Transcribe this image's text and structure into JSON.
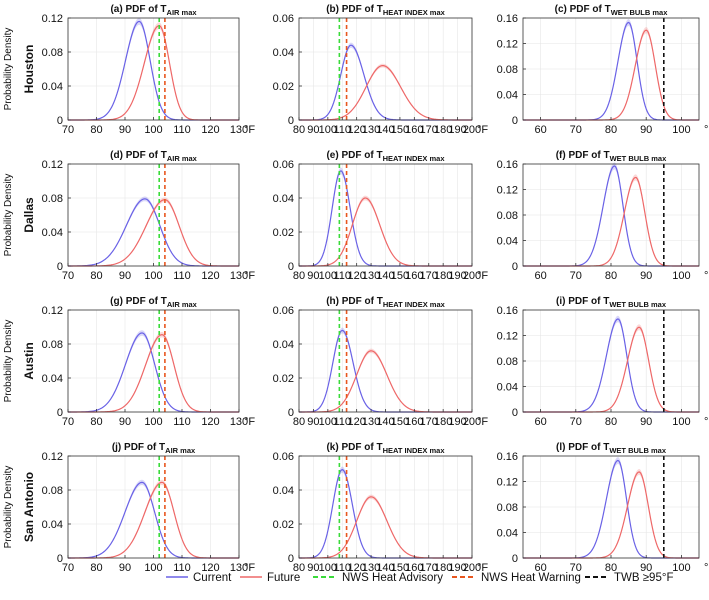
{
  "figure": {
    "y_axis_label": "Probability Density",
    "x_unit": "°F",
    "cities": [
      "Houston",
      "Dallas",
      "Austin",
      "San Antonio"
    ],
    "column_titles": [
      {
        "prefix": "PDF of T",
        "subscript": "AIR max"
      },
      {
        "prefix": "PDF of T",
        "subscript": "HEAT INDEX max"
      },
      {
        "prefix": "PDF of T",
        "subscript": "WET BULB max"
      }
    ],
    "panel_letters": [
      "a",
      "b",
      "c",
      "d",
      "e",
      "f",
      "g",
      "h",
      "i",
      "j",
      "k",
      "l"
    ],
    "colors": {
      "current": "#6a62e6",
      "future": "#ee6868",
      "advisory": "#3adb3a",
      "warning": "#e8561e",
      "twb": "#111111"
    }
  },
  "legend": {
    "current": "Current",
    "future": "Future",
    "advisory": "NWS Heat Advisory",
    "warning": "NWS Heat Warning",
    "twb": "TWB ≥95°F"
  },
  "chart_data": [
    {
      "type": "line",
      "panel": "a",
      "city": "Houston",
      "variable": "T_AIR max",
      "xlim": [
        70,
        130
      ],
      "xticks": [
        70,
        80,
        90,
        100,
        110,
        120,
        130
      ],
      "ylim": [
        0,
        0.12
      ],
      "yticks": [
        0,
        0.04,
        0.08,
        0.12
      ],
      "ytick_labels": [
        "0",
        "0.04",
        "0.08",
        "0.12"
      ],
      "series": [
        {
          "name": "Current",
          "peak_x": 95,
          "peak_y": 0.116,
          "sd_left": 4.8,
          "sd_right": 3.8
        },
        {
          "name": "Future",
          "peak_x": 102,
          "peak_y": 0.111,
          "sd_left": 5.2,
          "sd_right": 3.6
        }
      ],
      "thresholds": [
        {
          "name": "NWS Heat Advisory",
          "x": 102
        },
        {
          "name": "NWS Heat Warning",
          "x": 104
        }
      ]
    },
    {
      "type": "line",
      "panel": "b",
      "city": "Houston",
      "variable": "T_HEAT INDEX max",
      "xlim": [
        80,
        200
      ],
      "xticks": [
        80,
        90,
        100,
        110,
        120,
        130,
        140,
        150,
        160,
        170,
        180,
        190,
        200
      ],
      "ylim": [
        0,
        0.06
      ],
      "yticks": [
        0,
        0.02,
        0.04,
        0.06
      ],
      "ytick_labels": [
        "0",
        "0.02",
        "0.04",
        "0.06"
      ],
      "series": [
        {
          "name": "Current",
          "peak_x": 116,
          "peak_y": 0.044,
          "sd_left": 7.0,
          "sd_right": 9.0
        },
        {
          "name": "Future",
          "peak_x": 138,
          "peak_y": 0.032,
          "sd_left": 11.5,
          "sd_right": 12.5
        }
      ],
      "thresholds": [
        {
          "name": "NWS Heat Advisory",
          "x": 108
        },
        {
          "name": "NWS Heat Warning",
          "x": 113
        }
      ]
    },
    {
      "type": "line",
      "panel": "c",
      "city": "Houston",
      "variable": "T_WET BULB max",
      "xlim": [
        55,
        105
      ],
      "xticks": [
        60,
        70,
        80,
        90,
        100
      ],
      "ylim": [
        0,
        0.16
      ],
      "yticks": [
        0,
        0.04,
        0.08,
        0.12,
        0.16
      ],
      "ytick_labels": [
        "0",
        "0.04",
        "0.08",
        "0.12",
        "0.16"
      ],
      "series": [
        {
          "name": "Current",
          "peak_x": 85,
          "peak_y": 0.153,
          "sd_left": 3.0,
          "sd_right": 2.4
        },
        {
          "name": "Future",
          "peak_x": 90,
          "peak_y": 0.141,
          "sd_left": 3.1,
          "sd_right": 2.6
        }
      ],
      "thresholds": [
        {
          "name": "TWB ≥95°F",
          "x": 95
        }
      ]
    },
    {
      "type": "line",
      "panel": "d",
      "city": "Dallas",
      "variable": "T_AIR max",
      "xlim": [
        70,
        130
      ],
      "xticks": [
        70,
        80,
        90,
        100,
        110,
        120,
        130
      ],
      "ylim": [
        0,
        0.12
      ],
      "yticks": [
        0,
        0.04,
        0.08,
        0.12
      ],
      "ytick_labels": [
        "0",
        "0.04",
        "0.08",
        "0.12"
      ],
      "series": [
        {
          "name": "Current",
          "peak_x": 97,
          "peak_y": 0.079,
          "sd_left": 6.5,
          "sd_right": 5.2
        },
        {
          "name": "Future",
          "peak_x": 104,
          "peak_y": 0.078,
          "sd_left": 6.6,
          "sd_right": 5.0
        }
      ],
      "thresholds": [
        {
          "name": "NWS Heat Advisory",
          "x": 102
        },
        {
          "name": "NWS Heat Warning",
          "x": 104
        }
      ]
    },
    {
      "type": "line",
      "panel": "e",
      "city": "Dallas",
      "variable": "T_HEAT INDEX max",
      "xlim": [
        80,
        200
      ],
      "xticks": [
        80,
        90,
        100,
        110,
        120,
        130,
        140,
        150,
        160,
        170,
        180,
        190,
        200
      ],
      "ylim": [
        0,
        0.06
      ],
      "yticks": [
        0,
        0.02,
        0.04,
        0.06
      ],
      "ytick_labels": [
        "0",
        "0.02",
        "0.04",
        "0.06"
      ],
      "series": [
        {
          "name": "Current",
          "peak_x": 109,
          "peak_y": 0.056,
          "sd_left": 6.0,
          "sd_right": 6.5
        },
        {
          "name": "Future",
          "peak_x": 126,
          "peak_y": 0.04,
          "sd_left": 9.0,
          "sd_right": 10.0
        }
      ],
      "thresholds": [
        {
          "name": "NWS Heat Advisory",
          "x": 108
        },
        {
          "name": "NWS Heat Warning",
          "x": 113
        }
      ]
    },
    {
      "type": "line",
      "panel": "f",
      "city": "Dallas",
      "variable": "T_WET BULB max",
      "xlim": [
        55,
        105
      ],
      "xticks": [
        60,
        70,
        80,
        90,
        100
      ],
      "ylim": [
        0,
        0.16
      ],
      "yticks": [
        0,
        0.04,
        0.08,
        0.12,
        0.16
      ],
      "ytick_labels": [
        "0",
        "0.04",
        "0.08",
        "0.12",
        "0.16"
      ],
      "series": [
        {
          "name": "Current",
          "peak_x": 81,
          "peak_y": 0.157,
          "sd_left": 3.2,
          "sd_right": 2.4
        },
        {
          "name": "Future",
          "peak_x": 87,
          "peak_y": 0.139,
          "sd_left": 3.2,
          "sd_right": 2.6
        }
      ],
      "thresholds": [
        {
          "name": "TWB ≥95°F",
          "x": 95
        }
      ]
    },
    {
      "type": "line",
      "panel": "g",
      "city": "Austin",
      "variable": "T_AIR max",
      "xlim": [
        70,
        130
      ],
      "xticks": [
        70,
        80,
        90,
        100,
        110,
        120,
        130
      ],
      "ylim": [
        0,
        0.12
      ],
      "yticks": [
        0,
        0.04,
        0.08,
        0.12
      ],
      "ytick_labels": [
        "0",
        "0.04",
        "0.08",
        "0.12"
      ],
      "series": [
        {
          "name": "Current",
          "peak_x": 96,
          "peak_y": 0.093,
          "sd_left": 5.8,
          "sd_right": 4.4
        },
        {
          "name": "Future",
          "peak_x": 103,
          "peak_y": 0.091,
          "sd_left": 5.8,
          "sd_right": 4.2
        }
      ],
      "thresholds": [
        {
          "name": "NWS Heat Advisory",
          "x": 102
        },
        {
          "name": "NWS Heat Warning",
          "x": 104
        }
      ]
    },
    {
      "type": "line",
      "panel": "h",
      "city": "Austin",
      "variable": "T_HEAT INDEX max",
      "xlim": [
        80,
        200
      ],
      "xticks": [
        80,
        90,
        100,
        110,
        120,
        130,
        140,
        150,
        160,
        170,
        180,
        190,
        200
      ],
      "ylim": [
        0,
        0.06
      ],
      "yticks": [
        0,
        0.02,
        0.04,
        0.06
      ],
      "ytick_labels": [
        "0",
        "0.02",
        "0.04",
        "0.06"
      ],
      "series": [
        {
          "name": "Current",
          "peak_x": 110,
          "peak_y": 0.048,
          "sd_left": 6.5,
          "sd_right": 7.5
        },
        {
          "name": "Future",
          "peak_x": 130,
          "peak_y": 0.036,
          "sd_left": 10.0,
          "sd_right": 11.0
        }
      ],
      "thresholds": [
        {
          "name": "NWS Heat Advisory",
          "x": 108
        },
        {
          "name": "NWS Heat Warning",
          "x": 113
        }
      ]
    },
    {
      "type": "line",
      "panel": "i",
      "city": "Austin",
      "variable": "T_WET BULB max",
      "xlim": [
        55,
        105
      ],
      "xticks": [
        60,
        70,
        80,
        90,
        100
      ],
      "ylim": [
        0,
        0.16
      ],
      "yticks": [
        0,
        0.04,
        0.08,
        0.12,
        0.16
      ],
      "ytick_labels": [
        "0",
        "0.04",
        "0.08",
        "0.12",
        "0.16"
      ],
      "series": [
        {
          "name": "Current",
          "peak_x": 82,
          "peak_y": 0.146,
          "sd_left": 3.3,
          "sd_right": 2.5
        },
        {
          "name": "Future",
          "peak_x": 88,
          "peak_y": 0.133,
          "sd_left": 3.3,
          "sd_right": 2.7
        }
      ],
      "thresholds": [
        {
          "name": "TWB ≥95°F",
          "x": 95
        }
      ]
    },
    {
      "type": "line",
      "panel": "j",
      "city": "San Antonio",
      "variable": "T_AIR max",
      "xlim": [
        70,
        130
      ],
      "xticks": [
        70,
        80,
        90,
        100,
        110,
        120,
        130
      ],
      "ylim": [
        0,
        0.12
      ],
      "yticks": [
        0,
        0.04,
        0.08,
        0.12
      ],
      "ytick_labels": [
        "0",
        "0.04",
        "0.08",
        "0.12"
      ],
      "series": [
        {
          "name": "Current",
          "peak_x": 96,
          "peak_y": 0.089,
          "sd_left": 6.0,
          "sd_right": 4.4
        },
        {
          "name": "Future",
          "peak_x": 103,
          "peak_y": 0.089,
          "sd_left": 6.0,
          "sd_right": 4.2
        }
      ],
      "thresholds": [
        {
          "name": "NWS Heat Advisory",
          "x": 102
        },
        {
          "name": "NWS Heat Warning",
          "x": 104
        }
      ]
    },
    {
      "type": "line",
      "panel": "k",
      "city": "San Antonio",
      "variable": "T_HEAT INDEX max",
      "xlim": [
        80,
        200
      ],
      "xticks": [
        80,
        90,
        100,
        110,
        120,
        130,
        140,
        150,
        160,
        170,
        180,
        190,
        200
      ],
      "ylim": [
        0,
        0.06
      ],
      "yticks": [
        0,
        0.02,
        0.04,
        0.06
      ],
      "ytick_labels": [
        "0",
        "0.02",
        "0.04",
        "0.06"
      ],
      "series": [
        {
          "name": "Current",
          "peak_x": 110,
          "peak_y": 0.052,
          "sd_left": 6.5,
          "sd_right": 7.0
        },
        {
          "name": "Future",
          "peak_x": 130,
          "peak_y": 0.036,
          "sd_left": 10.0,
          "sd_right": 11.0
        }
      ],
      "thresholds": [
        {
          "name": "NWS Heat Advisory",
          "x": 108
        },
        {
          "name": "NWS Heat Warning",
          "x": 113
        }
      ]
    },
    {
      "type": "line",
      "panel": "l",
      "city": "San Antonio",
      "variable": "T_WET BULB max",
      "xlim": [
        55,
        105
      ],
      "xticks": [
        60,
        70,
        80,
        90,
        100
      ],
      "ylim": [
        0,
        0.16
      ],
      "yticks": [
        0,
        0.04,
        0.08,
        0.12,
        0.16
      ],
      "ytick_labels": [
        "0",
        "0.04",
        "0.08",
        "0.12",
        "0.16"
      ],
      "series": [
        {
          "name": "Current",
          "peak_x": 82,
          "peak_y": 0.153,
          "sd_left": 3.3,
          "sd_right": 2.4
        },
        {
          "name": "Future",
          "peak_x": 88,
          "peak_y": 0.135,
          "sd_left": 3.3,
          "sd_right": 2.6
        }
      ],
      "thresholds": [
        {
          "name": "TWB ≥95°F",
          "x": 95
        }
      ]
    }
  ]
}
